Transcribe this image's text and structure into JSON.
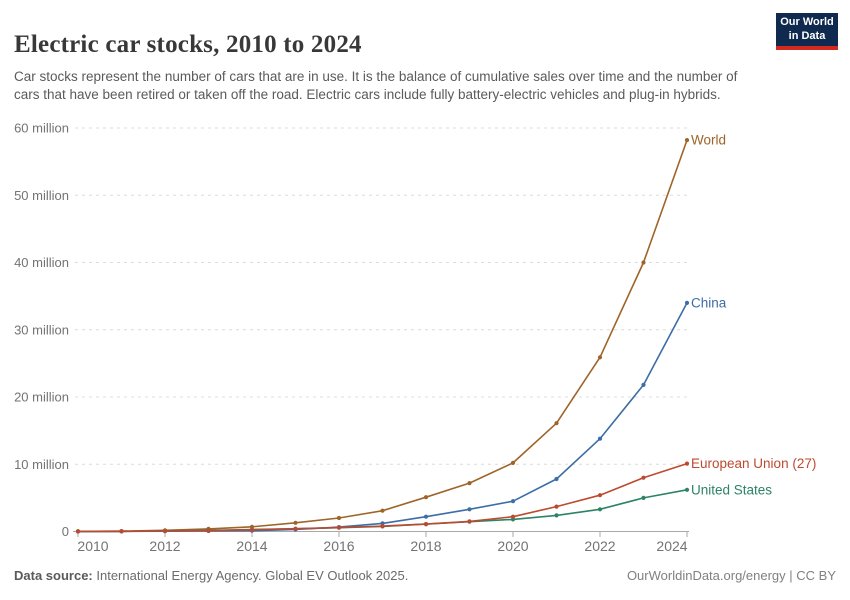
{
  "header": {
    "title": "Electric car stocks, 2010 to 2024",
    "subtitle": "Car stocks represent the number of cars that are in use. It is the balance of cumulative sales over time and the number of cars that have been retired or taken off the road. Electric cars include fully battery-electric vehicles and plug-in hybrids.",
    "logo": {
      "line1": "Our World",
      "line2": "in Data"
    }
  },
  "footer": {
    "source_label": "Data source:",
    "source_text": " International Energy Agency. Global EV Outlook 2025.",
    "right_text": "OurWorldinData.org/energy | CC BY"
  },
  "chart_data": {
    "type": "line",
    "title": "Electric car stocks, 2010 to 2024",
    "unit": "million cars",
    "x": [
      2010,
      2011,
      2012,
      2013,
      2014,
      2015,
      2016,
      2017,
      2018,
      2019,
      2020,
      2021,
      2022,
      2023,
      2024
    ],
    "x_tick_labels": [
      "2010",
      "2012",
      "2014",
      "2016",
      "2018",
      "2020",
      "2022",
      "2024"
    ],
    "y_ticks": [
      0,
      10,
      20,
      30,
      40,
      50,
      60
    ],
    "y_tick_suffix": " million",
    "ylim": [
      0,
      60
    ],
    "xlim": [
      2010,
      2024
    ],
    "grid": "horizontal-dashed",
    "legend_position": "labels-at-line-ends",
    "series": [
      {
        "name": "World",
        "color": "#9e6428",
        "values": [
          0.02,
          0.06,
          0.18,
          0.38,
          0.7,
          1.3,
          2.0,
          3.1,
          5.1,
          7.2,
          10.2,
          16.1,
          25.9,
          40.0,
          58.2
        ]
      },
      {
        "name": "China",
        "color": "#3d6da5",
        "values": [
          0.01,
          0.02,
          0.04,
          0.08,
          0.12,
          0.3,
          0.65,
          1.2,
          2.2,
          3.3,
          4.5,
          7.8,
          13.8,
          21.8,
          34.0
        ]
      },
      {
        "name": "European Union (27)",
        "color": "#bc4a2e",
        "values": [
          0.01,
          0.03,
          0.07,
          0.14,
          0.25,
          0.42,
          0.58,
          0.8,
          1.1,
          1.5,
          2.2,
          3.7,
          5.4,
          8.0,
          10.1
        ]
      },
      {
        "name": "United States",
        "color": "#2c8465",
        "values": [
          0.004,
          0.02,
          0.07,
          0.17,
          0.29,
          0.4,
          0.56,
          0.76,
          1.1,
          1.45,
          1.8,
          2.4,
          3.3,
          5.0,
          6.2
        ]
      }
    ],
    "colors": {
      "grid": "#dcdcdc",
      "axis": "#a9a9a9",
      "tick_label": "#737373"
    }
  }
}
